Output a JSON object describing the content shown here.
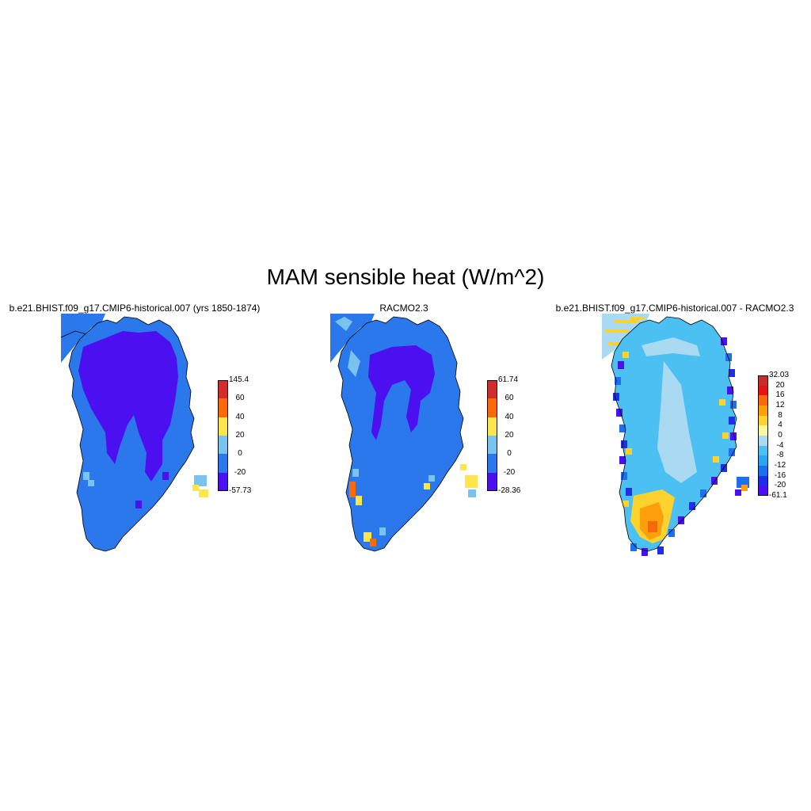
{
  "figure_title": "MAM sensible heat (W/m^2)",
  "panels": [
    {
      "title": "b.e21.BHIST.f09_g17.CMIP6-historical.007 (yrs 1850-1874)",
      "colorbar": {
        "colors": [
          "#4b0ff0",
          "#2a78ec",
          "#78c4ee",
          "#fde64b",
          "#fb6a0a",
          "#d22d2d"
        ],
        "labels": [
          "-57.73",
          "-20",
          "0",
          "20",
          "40",
          "60",
          "145.4"
        ]
      }
    },
    {
      "title": "RACMO2.3",
      "colorbar": {
        "colors": [
          "#4b0ff0",
          "#2a78ec",
          "#78c4ee",
          "#fde64b",
          "#fb6a0a",
          "#d22d2d"
        ],
        "labels": [
          "-28.36",
          "-20",
          "0",
          "20",
          "40",
          "60",
          "61.74"
        ]
      }
    },
    {
      "title": "b.e21.BHIST.f09_g17.CMIP6-historical.007 - RACMO2.3",
      "colorbar": {
        "colors": [
          "#4b0ff0",
          "#1e30e6",
          "#1e6ef0",
          "#2aa6ee",
          "#4cc0f2",
          "#aadaf2",
          "#fbf59e",
          "#fbd22e",
          "#fba00a",
          "#f56a0a",
          "#e61414",
          "#c82d2d"
        ],
        "labels": [
          "-61.1",
          "-20",
          "-16",
          "-12",
          "-8",
          "-4",
          "0",
          "4",
          "8",
          "12",
          "16",
          "20",
          "32.03"
        ]
      }
    }
  ]
}
